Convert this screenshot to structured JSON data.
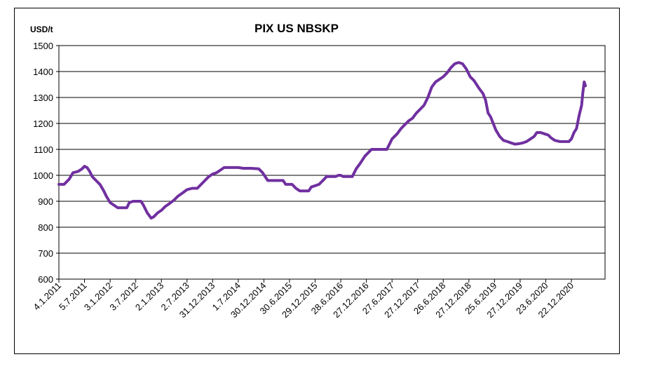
{
  "chart_data": {
    "type": "line",
    "title": "PIX US NBSKP",
    "ylabel": "USD/t",
    "ylim": [
      600,
      1500
    ],
    "yticks": [
      600,
      700,
      800,
      900,
      1000,
      1100,
      1200,
      1300,
      1400,
      1500
    ],
    "grid": true,
    "xtick_labels": [
      "4.1.2011",
      "5.7.2011",
      "3.1.2012",
      "3.7.2012",
      "2.1.2013",
      "2.7.2013",
      "31.12.2013",
      "1.7.2014",
      "30.12.2014",
      "30.6.2015",
      "29.12.2015",
      "28.6.2016",
      "27.12.2016",
      "27.6.2017",
      "27.12.2017",
      "26.6.2018",
      "27.12.2018",
      "25.6.2019",
      "27.12.2019",
      "23.6.2020",
      "22.12.2020"
    ],
    "series": [
      {
        "color": "#7030A0",
        "points": [
          [
            0,
            965
          ],
          [
            0.2,
            965
          ],
          [
            0.4,
            985
          ],
          [
            0.55,
            1010
          ],
          [
            0.75,
            1015
          ],
          [
            0.9,
            1025
          ],
          [
            1.0,
            1035
          ],
          [
            1.1,
            1030
          ],
          [
            1.2,
            1015
          ],
          [
            1.3,
            995
          ],
          [
            1.45,
            980
          ],
          [
            1.6,
            965
          ],
          [
            1.75,
            940
          ],
          [
            1.85,
            920
          ],
          [
            2.0,
            895
          ],
          [
            2.15,
            885
          ],
          [
            2.3,
            875
          ],
          [
            2.5,
            875
          ],
          [
            2.65,
            875
          ],
          [
            2.75,
            895
          ],
          [
            2.9,
            900
          ],
          [
            3.05,
            900
          ],
          [
            3.2,
            900
          ],
          [
            3.3,
            885
          ],
          [
            3.45,
            855
          ],
          [
            3.6,
            835
          ],
          [
            3.7,
            840
          ],
          [
            3.85,
            855
          ],
          [
            4.0,
            865
          ],
          [
            4.15,
            880
          ],
          [
            4.3,
            890
          ],
          [
            4.5,
            905
          ],
          [
            4.65,
            920
          ],
          [
            4.8,
            930
          ],
          [
            5.0,
            945
          ],
          [
            5.2,
            950
          ],
          [
            5.4,
            950
          ],
          [
            5.55,
            965
          ],
          [
            5.7,
            980
          ],
          [
            5.85,
            995
          ],
          [
            6.0,
            1005
          ],
          [
            6.15,
            1010
          ],
          [
            6.3,
            1020
          ],
          [
            6.45,
            1030
          ],
          [
            6.6,
            1030
          ],
          [
            6.8,
            1030
          ],
          [
            7.0,
            1030
          ],
          [
            7.2,
            1027
          ],
          [
            7.5,
            1027
          ],
          [
            7.8,
            1025
          ],
          [
            7.95,
            1010
          ],
          [
            8.05,
            995
          ],
          [
            8.15,
            980
          ],
          [
            8.3,
            980
          ],
          [
            8.5,
            980
          ],
          [
            8.75,
            980
          ],
          [
            8.85,
            965
          ],
          [
            9.1,
            965
          ],
          [
            9.25,
            950
          ],
          [
            9.4,
            940
          ],
          [
            9.6,
            940
          ],
          [
            9.75,
            940
          ],
          [
            9.85,
            955
          ],
          [
            10.0,
            960
          ],
          [
            10.15,
            965
          ],
          [
            10.3,
            980
          ],
          [
            10.45,
            995
          ],
          [
            10.6,
            995
          ],
          [
            10.8,
            995
          ],
          [
            10.9,
            1000
          ],
          [
            11.0,
            1000
          ],
          [
            11.1,
            995
          ],
          [
            11.3,
            995
          ],
          [
            11.45,
            995
          ],
          [
            11.6,
            1025
          ],
          [
            11.75,
            1045
          ],
          [
            11.85,
            1060
          ],
          [
            11.95,
            1075
          ],
          [
            12.1,
            1090
          ],
          [
            12.2,
            1100
          ],
          [
            12.4,
            1100
          ],
          [
            12.6,
            1100
          ],
          [
            12.8,
            1100
          ],
          [
            12.9,
            1120
          ],
          [
            13.0,
            1140
          ],
          [
            13.2,
            1160
          ],
          [
            13.35,
            1180
          ],
          [
            13.5,
            1195
          ],
          [
            13.65,
            1210
          ],
          [
            13.8,
            1220
          ],
          [
            13.95,
            1240
          ],
          [
            14.1,
            1255
          ],
          [
            14.25,
            1270
          ],
          [
            14.4,
            1300
          ],
          [
            14.55,
            1340
          ],
          [
            14.7,
            1360
          ],
          [
            14.85,
            1370
          ],
          [
            15.0,
            1380
          ],
          [
            15.15,
            1395
          ],
          [
            15.3,
            1415
          ],
          [
            15.45,
            1430
          ],
          [
            15.6,
            1435
          ],
          [
            15.75,
            1430
          ],
          [
            15.9,
            1410
          ],
          [
            16.05,
            1380
          ],
          [
            16.2,
            1365
          ],
          [
            16.4,
            1335
          ],
          [
            16.55,
            1315
          ],
          [
            16.65,
            1290
          ],
          [
            16.75,
            1240
          ],
          [
            16.85,
            1225
          ],
          [
            16.95,
            1200
          ],
          [
            17.05,
            1175
          ],
          [
            17.2,
            1150
          ],
          [
            17.35,
            1135
          ],
          [
            17.5,
            1130
          ],
          [
            17.65,
            1125
          ],
          [
            17.8,
            1120
          ],
          [
            17.95,
            1122
          ],
          [
            18.1,
            1125
          ],
          [
            18.25,
            1130
          ],
          [
            18.4,
            1140
          ],
          [
            18.55,
            1150
          ],
          [
            18.65,
            1165
          ],
          [
            18.8,
            1165
          ],
          [
            18.95,
            1160
          ],
          [
            19.1,
            1155
          ],
          [
            19.2,
            1145
          ],
          [
            19.35,
            1135
          ],
          [
            19.55,
            1130
          ],
          [
            19.75,
            1130
          ],
          [
            19.9,
            1130
          ],
          [
            20.0,
            1140
          ],
          [
            20.1,
            1165
          ],
          [
            20.2,
            1180
          ],
          [
            20.3,
            1230
          ],
          [
            20.4,
            1270
          ],
          [
            20.45,
            1320
          ],
          [
            20.5,
            1360
          ],
          [
            20.55,
            1345
          ]
        ]
      }
    ]
  }
}
